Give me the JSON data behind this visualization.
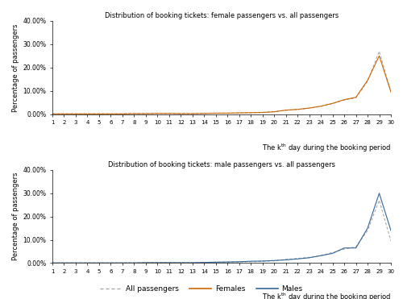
{
  "days": [
    1,
    2,
    3,
    4,
    5,
    6,
    7,
    8,
    9,
    10,
    11,
    12,
    13,
    14,
    15,
    16,
    17,
    18,
    19,
    20,
    21,
    22,
    23,
    24,
    25,
    26,
    27,
    28,
    29,
    30
  ],
  "all_passengers": [
    0.001,
    0.001,
    0.001,
    0.001,
    0.001,
    0.001,
    0.001,
    0.002,
    0.002,
    0.003,
    0.003,
    0.002,
    0.002,
    0.003,
    0.004,
    0.004,
    0.005,
    0.006,
    0.007,
    0.01,
    0.016,
    0.02,
    0.025,
    0.033,
    0.045,
    0.06,
    0.07,
    0.14,
    0.27,
    0.095
  ],
  "females": [
    0.001,
    0.001,
    0.001,
    0.001,
    0.001,
    0.001,
    0.001,
    0.002,
    0.002,
    0.003,
    0.003,
    0.002,
    0.002,
    0.003,
    0.004,
    0.004,
    0.005,
    0.006,
    0.007,
    0.01,
    0.017,
    0.02,
    0.026,
    0.034,
    0.046,
    0.062,
    0.072,
    0.145,
    0.25,
    0.095
  ],
  "all_passengers2": [
    0.001,
    0.001,
    0.001,
    0.001,
    0.001,
    0.001,
    0.001,
    0.002,
    0.002,
    0.003,
    0.003,
    0.002,
    0.002,
    0.003,
    0.004,
    0.004,
    0.005,
    0.006,
    0.007,
    0.01,
    0.016,
    0.02,
    0.025,
    0.033,
    0.045,
    0.06,
    0.07,
    0.14,
    0.27,
    0.095
  ],
  "males": [
    0.001,
    0.001,
    0.001,
    0.001,
    0.001,
    0.001,
    0.001,
    0.001,
    0.002,
    0.002,
    0.002,
    0.002,
    0.002,
    0.003,
    0.004,
    0.005,
    0.006,
    0.008,
    0.009,
    0.011,
    0.014,
    0.018,
    0.023,
    0.032,
    0.042,
    0.065,
    0.065,
    0.15,
    0.3,
    0.14
  ],
  "title1": "Distribution of booking tickets: female passengers vs. all passengers",
  "title2": "Distribution of booking tickets: male passengers vs. all passengers",
  "ylabel": "Percentage of passengers",
  "ylim": [
    0.0,
    0.4
  ],
  "yticks": [
    0.0,
    0.1,
    0.2,
    0.3,
    0.4
  ],
  "color_all": "#aaaaaa",
  "color_female": "#cc6600",
  "color_male": "#336699",
  "bg_color": "#ffffff"
}
